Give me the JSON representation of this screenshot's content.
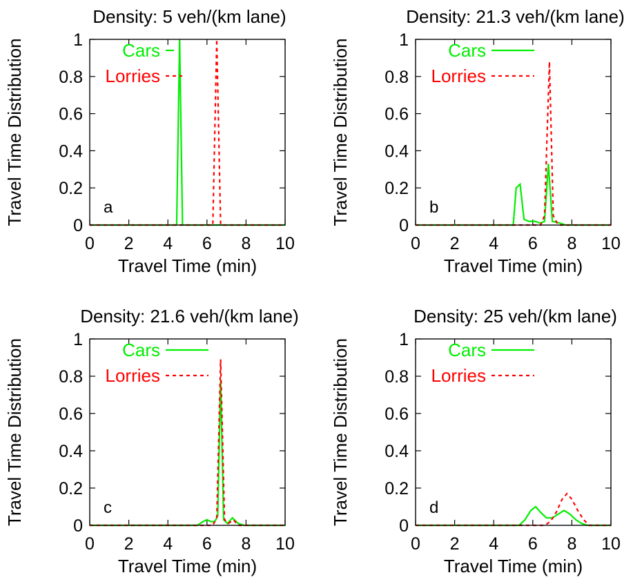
{
  "chart_data": [
    {
      "type": "line",
      "title": "Density: 5 veh/(km lane)",
      "panel_label": "a",
      "xlabel": "Travel Time (min)",
      "ylabel": "Travel Time Distribution",
      "xlim": [
        0,
        10
      ],
      "ylim": [
        0,
        1
      ],
      "xticks": [
        "0",
        "2",
        "4",
        "6",
        "8",
        "10"
      ],
      "yticks": [
        "0",
        "0.2",
        "0.4",
        "0.6",
        "0.8",
        "1"
      ],
      "legend_position": "top-left",
      "series": [
        {
          "name": "Cars",
          "color": "#00ee00",
          "dash": "solid",
          "points": [
            [
              0,
              0
            ],
            [
              4.45,
              0
            ],
            [
              4.6,
              1.0
            ],
            [
              4.75,
              0
            ],
            [
              10,
              0
            ]
          ]
        },
        {
          "name": "Lorries",
          "color": "#ff0000",
          "dash": "dashed",
          "points": [
            [
              0,
              0
            ],
            [
              6.3,
              0
            ],
            [
              6.5,
              1.0
            ],
            [
              6.7,
              0
            ],
            [
              10,
              0
            ]
          ]
        }
      ]
    },
    {
      "type": "line",
      "title": "Density: 21.3 veh/(km lane)",
      "panel_label": "b",
      "xlabel": "Travel Time (min)",
      "ylabel": "Travel Time Distribution",
      "xlim": [
        0,
        10
      ],
      "ylim": [
        0,
        1
      ],
      "xticks": [
        "0",
        "2",
        "4",
        "6",
        "8",
        "10"
      ],
      "yticks": [
        "0",
        "0.2",
        "0.4",
        "0.6",
        "0.8",
        "1"
      ],
      "legend_position": "top-left",
      "series": [
        {
          "name": "Cars",
          "color": "#00ee00",
          "dash": "solid",
          "points": [
            [
              0,
              0
            ],
            [
              5.0,
              0
            ],
            [
              5.15,
              0.2
            ],
            [
              5.35,
              0.22
            ],
            [
              5.55,
              0.03
            ],
            [
              5.8,
              0.02
            ],
            [
              6.1,
              0.02
            ],
            [
              6.4,
              0.01
            ],
            [
              6.6,
              0.02
            ],
            [
              6.8,
              0.33
            ],
            [
              7.0,
              0.02
            ],
            [
              7.4,
              0.01
            ],
            [
              7.7,
              0
            ],
            [
              10,
              0
            ]
          ]
        },
        {
          "name": "Lorries",
          "color": "#ff0000",
          "dash": "dashed",
          "points": [
            [
              0,
              0
            ],
            [
              6.4,
              0
            ],
            [
              6.6,
              0.05
            ],
            [
              6.85,
              0.88
            ],
            [
              7.05,
              0.05
            ],
            [
              7.3,
              0
            ],
            [
              10,
              0
            ]
          ]
        }
      ]
    },
    {
      "type": "line",
      "title": "Density: 21.6 veh/(km lane)",
      "panel_label": "c",
      "xlabel": "Travel Time (min)",
      "ylabel": "Travel Time Distribution",
      "xlim": [
        0,
        10
      ],
      "ylim": [
        0,
        1
      ],
      "xticks": [
        "0",
        "2",
        "4",
        "6",
        "8",
        "10"
      ],
      "yticks": [
        "0",
        "0.2",
        "0.4",
        "0.6",
        "0.8",
        "1"
      ],
      "legend_position": "top-left",
      "series": [
        {
          "name": "Cars",
          "color": "#00ee00",
          "dash": "solid",
          "points": [
            [
              0,
              0
            ],
            [
              5.5,
              0
            ],
            [
              5.8,
              0.02
            ],
            [
              6.0,
              0.03
            ],
            [
              6.2,
              0.02
            ],
            [
              6.4,
              0.02
            ],
            [
              6.55,
              0.05
            ],
            [
              6.7,
              0.78
            ],
            [
              6.85,
              0.03
            ],
            [
              7.05,
              0.01
            ],
            [
              7.3,
              0.04
            ],
            [
              7.6,
              0.01
            ],
            [
              7.9,
              0
            ],
            [
              10,
              0
            ]
          ]
        },
        {
          "name": "Lorries",
          "color": "#ff0000",
          "dash": "dashed",
          "points": [
            [
              0,
              0
            ],
            [
              6.3,
              0
            ],
            [
              6.5,
              0.04
            ],
            [
              6.7,
              0.89
            ],
            [
              6.9,
              0.03
            ],
            [
              7.1,
              0.01
            ],
            [
              7.35,
              0.03
            ],
            [
              7.6,
              0
            ],
            [
              10,
              0
            ]
          ]
        }
      ]
    },
    {
      "type": "line",
      "title": "Density: 25 veh/(km lane)",
      "panel_label": "d",
      "xlabel": "Travel Time (min)",
      "ylabel": "Travel Time Distribution",
      "xlim": [
        0,
        10
      ],
      "ylim": [
        0,
        1
      ],
      "xticks": [
        "0",
        "2",
        "4",
        "6",
        "8",
        "10"
      ],
      "yticks": [
        "0",
        "0.2",
        "0.4",
        "0.6",
        "0.8",
        "1"
      ],
      "legend_position": "top-left",
      "series": [
        {
          "name": "Cars",
          "color": "#00ee00",
          "dash": "solid",
          "points": [
            [
              0,
              0
            ],
            [
              5.3,
              0
            ],
            [
              5.6,
              0.03
            ],
            [
              5.9,
              0.08
            ],
            [
              6.15,
              0.1
            ],
            [
              6.4,
              0.07
            ],
            [
              6.7,
              0.04
            ],
            [
              7.0,
              0.04
            ],
            [
              7.3,
              0.06
            ],
            [
              7.6,
              0.08
            ],
            [
              7.9,
              0.06
            ],
            [
              8.2,
              0.03
            ],
            [
              8.5,
              0.01
            ],
            [
              8.8,
              0
            ],
            [
              10,
              0
            ]
          ]
        },
        {
          "name": "Lorries",
          "color": "#ff0000",
          "dash": "dashed",
          "points": [
            [
              0,
              0
            ],
            [
              6.6,
              0
            ],
            [
              6.9,
              0.02
            ],
            [
              7.2,
              0.07
            ],
            [
              7.5,
              0.14
            ],
            [
              7.75,
              0.17
            ],
            [
              8.0,
              0.14
            ],
            [
              8.3,
              0.08
            ],
            [
              8.6,
              0.03
            ],
            [
              8.9,
              0
            ],
            [
              10,
              0
            ]
          ]
        }
      ]
    }
  ]
}
